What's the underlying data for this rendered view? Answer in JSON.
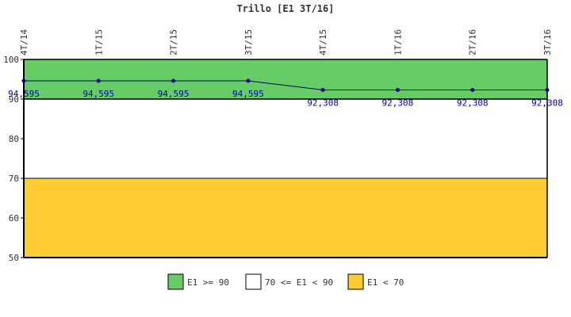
{
  "chart_data": {
    "type": "line",
    "title": "Trillo [E1 3T/16]",
    "xlabel": "",
    "ylabel": "",
    "categories": [
      "4T/14",
      "1T/15",
      "2T/15",
      "3T/15",
      "4T/15",
      "1T/16",
      "2T/16",
      "3T/16"
    ],
    "series": [
      {
        "values": [
          94.595,
          94.595,
          94.595,
          94.595,
          92.308,
          92.308,
          92.308,
          92.308
        ],
        "labels": [
          "94,595",
          "94,595",
          "94,595",
          "94,595",
          "92,308",
          "92,308",
          "92,308",
          "92,308"
        ],
        "color": "#000066",
        "label_color": "#0000bb"
      }
    ],
    "ylim": [
      50,
      100
    ],
    "yticks": [
      "50",
      "60",
      "70",
      "80",
      "90",
      "100"
    ],
    "bands": [
      {
        "from": 90,
        "to": 100,
        "color": "#66cc66",
        "label": "E1 >= 90"
      },
      {
        "from": 70,
        "to": 90,
        "color": "#ffffff",
        "label": "70 <= E1 < 90"
      },
      {
        "from": 50,
        "to": 70,
        "color": "#ffcc33",
        "label": "E1 < 70"
      }
    ],
    "legend_position": "bottom",
    "grid": false
  }
}
